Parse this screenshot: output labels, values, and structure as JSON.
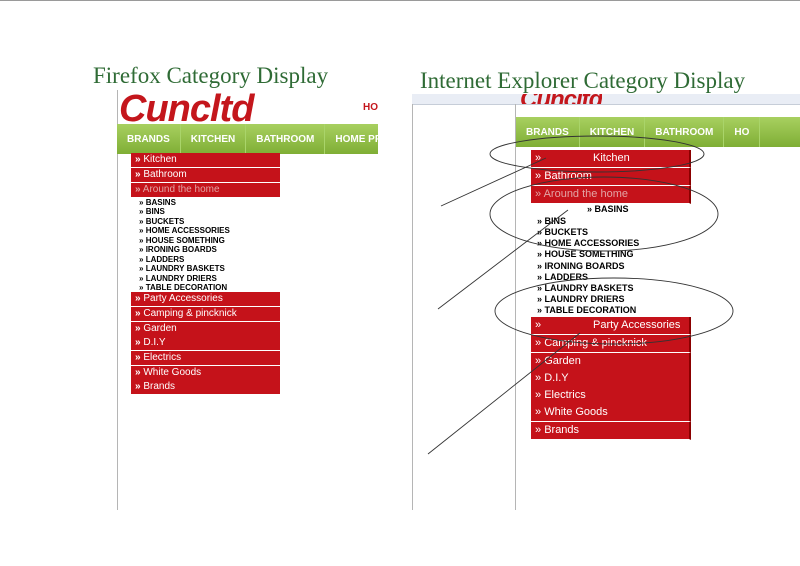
{
  "captions": {
    "firefox": "Firefox Category Display",
    "ie": "Internet Explorer  Category Display"
  },
  "site": {
    "logo": "Cuncltd",
    "header_hint": "HO"
  },
  "nav": {
    "firefox": [
      "BRANDS",
      "KITCHEN",
      "BATHROOM",
      "HOME PRODU"
    ],
    "ie": [
      "BRANDS",
      "KITCHEN",
      "BATHROOM",
      "HO"
    ]
  },
  "categories": {
    "arrow": "»",
    "top": [
      "Kitchen",
      "Bathroom",
      "Around the home"
    ],
    "bottom": [
      "Party Accessories",
      "Camping & pincknick",
      "Garden",
      "D.I.Y",
      "Electrics",
      "White Goods",
      "Brands"
    ]
  },
  "subcategories": {
    "arrow": "»",
    "items": [
      "BASINS",
      "BINS",
      "BUCKETS",
      "HOME ACCESSORIES",
      "HOUSE SOMETHING",
      "IRONING BOARDS",
      "LADDERS",
      "LAUNDRY BASKETS",
      "LAUNDRY DRIERS",
      "TABLE DECORATION"
    ]
  },
  "colors": {
    "caption_green": "#2f6b35",
    "category_red": "#c5121a",
    "nav_green": "#8cbf3f",
    "muted_category_text": "#e2a5a5"
  }
}
